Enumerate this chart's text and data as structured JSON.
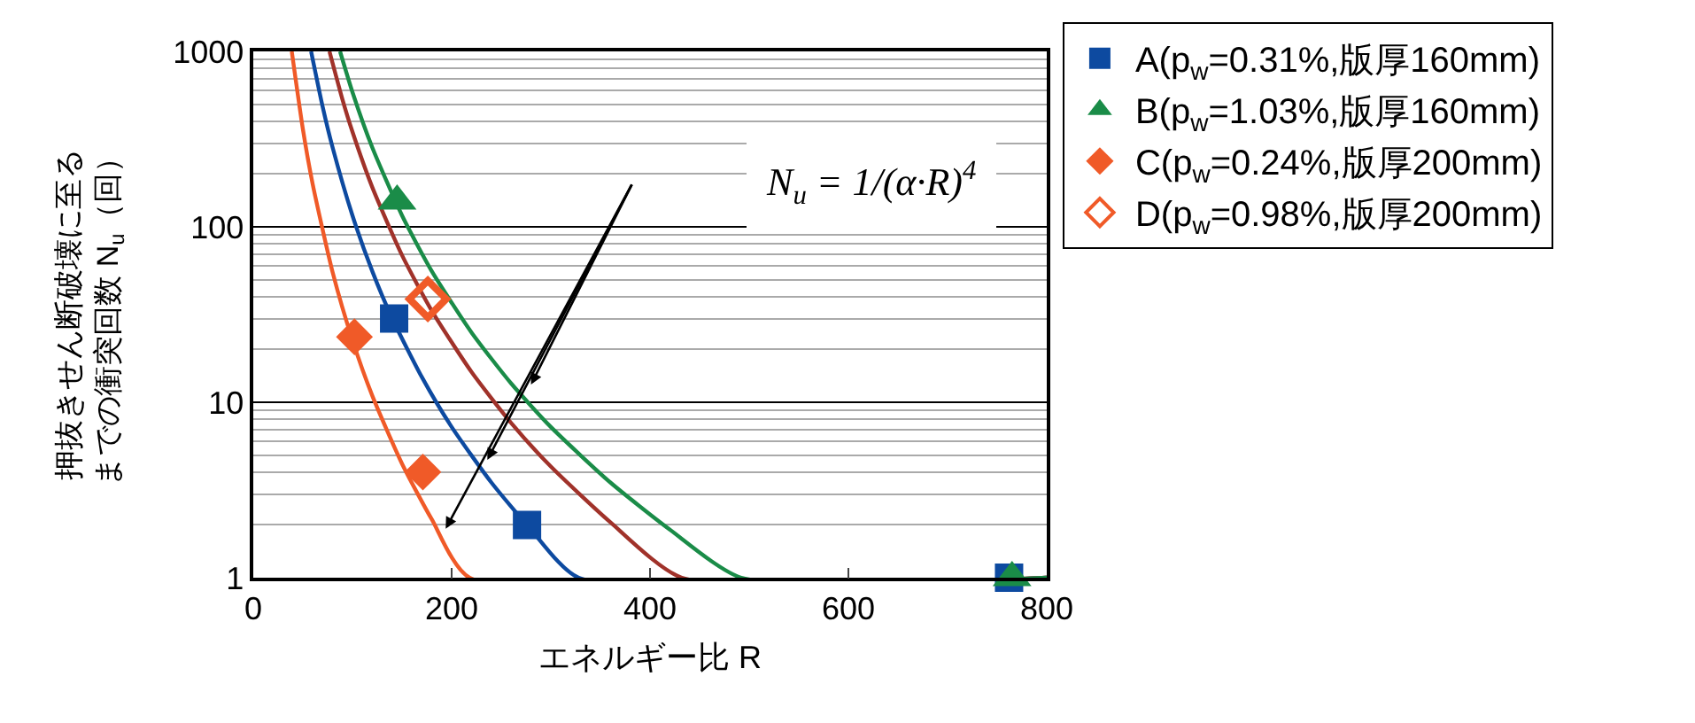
{
  "chart_data": {
    "type": "scatter",
    "xlabel": "エネルギー比 R",
    "ylabel": "押抜きせん断破壊に至るまでの衝突回数 N$_{u}$（回）",
    "xlim": [
      0,
      800
    ],
    "xticks": [
      0,
      200,
      400,
      600,
      800
    ],
    "ylim": [
      1,
      1000
    ],
    "yticks": [
      1,
      10,
      100,
      1000
    ],
    "log": "y",
    "grid": "y",
    "legend": "top right",
    "annotations": [
      "N$_{u}$ = 1/(α·R)$^{4}$"
    ],
    "series": [
      {
        "type": "line",
        "color": "#f05a28",
        "x": [
          38.8,
          50,
          60,
          80,
          100,
          120,
          150,
          180,
          218,
          800
        ],
        "values": [
          1000,
          361,
          174,
          55.1,
          22.6,
          10.9,
          4.46,
          2.15,
          1,
          1
        ]
      },
      {
        "type": "line",
        "color": "#0d4aa0",
        "x": [
          58.3,
          70,
          80,
          100,
          120,
          140,
          170,
          200,
          240,
          280,
          328,
          800
        ],
        "values": [
          1000,
          482,
          283,
          116,
          55.8,
          30.1,
          13.9,
          7.23,
          3.49,
          1.88,
          1,
          1
        ]
      },
      {
        "type": "line",
        "color": "#a0322a",
        "x": [
          76.8,
          90,
          100,
          120,
          150,
          180,
          220,
          260,
          300,
          360,
          432,
          800
        ],
        "values": [
          1000,
          530,
          348,
          168,
          68.8,
          33.2,
          14.9,
          7.62,
          4.3,
          2.07,
          1,
          1
        ]
      },
      {
        "type": "line",
        "color": "#1a8c48",
        "x": [
          87.5,
          100,
          120,
          150,
          180,
          220,
          260,
          300,
          360,
          420,
          492,
          800
        ],
        "values": [
          1000,
          586,
          283,
          116,
          55.8,
          25,
          12.8,
          7.23,
          3.49,
          1.88,
          1,
          1
        ]
      },
      {
        "name": "A(p$_{w}$=0.31%,版厚160mm)",
        "color": "#0d4aa0",
        "marker": "square",
        "x": [
          142,
          276,
          762
        ],
        "values": [
          30,
          2,
          1
        ]
      },
      {
        "name": "B(p$_{w}$=1.03%,版厚160mm)",
        "color": "#1a8c48",
        "marker": "triangle",
        "x": [
          145,
          765
        ],
        "values": [
          140,
          1
        ]
      },
      {
        "name": "C(p$_{w}$=0.24%,版厚200mm)",
        "color": "#f05a28",
        "marker": "diamond",
        "x": [
          102,
          171
        ],
        "values": [
          23.6,
          4
        ]
      },
      {
        "name": "D(p$_{w}$=0.98%,版厚200mm)",
        "color": "#f05a28",
        "marker": "diamond-open",
        "x": [
          176
        ],
        "values": [
          38.8
        ]
      }
    ]
  }
}
